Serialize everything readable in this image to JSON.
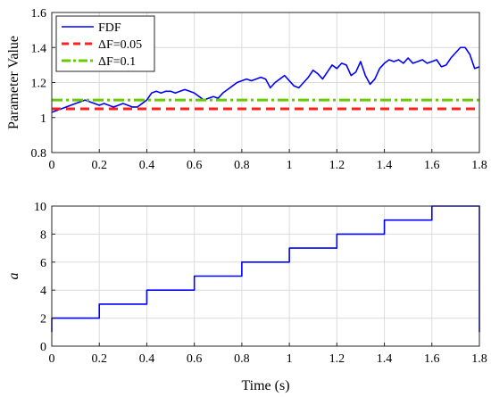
{
  "chart_data": [
    {
      "type": "line",
      "ylabel": "Parameter Value",
      "xlabel": "",
      "xlim": [
        0,
        1.8
      ],
      "ylim": [
        0.8,
        1.6
      ],
      "xticks": [
        0,
        0.2,
        0.4,
        0.6,
        0.8,
        1,
        1.2,
        1.4,
        1.6,
        1.8
      ],
      "yticks": [
        0.8,
        1,
        1.2,
        1.4,
        1.6
      ],
      "grid": true,
      "legend": "top-left",
      "series": [
        {
          "name": "FDF",
          "color": "#0000ff",
          "style": "solid",
          "x": [
            0,
            0.02,
            0.04,
            0.06,
            0.08,
            0.1,
            0.12,
            0.14,
            0.16,
            0.18,
            0.2,
            0.22,
            0.24,
            0.26,
            0.28,
            0.3,
            0.32,
            0.34,
            0.36,
            0.38,
            0.4,
            0.42,
            0.44,
            0.46,
            0.48,
            0.5,
            0.52,
            0.54,
            0.56,
            0.58,
            0.6,
            0.62,
            0.64,
            0.66,
            0.68,
            0.7,
            0.72,
            0.74,
            0.76,
            0.78,
            0.8,
            0.82,
            0.84,
            0.86,
            0.88,
            0.9,
            0.92,
            0.94,
            0.96,
            0.98,
            1,
            1.02,
            1.04,
            1.06,
            1.08,
            1.1,
            1.12,
            1.14,
            1.16,
            1.18,
            1.2,
            1.22,
            1.24,
            1.26,
            1.28,
            1.3,
            1.32,
            1.34,
            1.36,
            1.38,
            1.4,
            1.42,
            1.44,
            1.46,
            1.48,
            1.5,
            1.52,
            1.54,
            1.56,
            1.58,
            1.6,
            1.62,
            1.64,
            1.66,
            1.68,
            1.7,
            1.72,
            1.74,
            1.76,
            1.78,
            1.8
          ],
          "y": [
            1.03,
            1.04,
            1.05,
            1.06,
            1.07,
            1.08,
            1.09,
            1.1,
            1.09,
            1.08,
            1.07,
            1.08,
            1.07,
            1.06,
            1.07,
            1.08,
            1.07,
            1.06,
            1.06,
            1.08,
            1.1,
            1.14,
            1.15,
            1.14,
            1.15,
            1.15,
            1.14,
            1.15,
            1.16,
            1.15,
            1.14,
            1.12,
            1.1,
            1.11,
            1.12,
            1.11,
            1.14,
            1.16,
            1.18,
            1.2,
            1.21,
            1.22,
            1.21,
            1.22,
            1.23,
            1.22,
            1.17,
            1.2,
            1.22,
            1.24,
            1.21,
            1.18,
            1.17,
            1.2,
            1.23,
            1.27,
            1.25,
            1.22,
            1.26,
            1.3,
            1.28,
            1.31,
            1.3,
            1.24,
            1.26,
            1.32,
            1.24,
            1.19,
            1.22,
            1.28,
            1.31,
            1.33,
            1.32,
            1.33,
            1.31,
            1.34,
            1.31,
            1.32,
            1.33,
            1.31,
            1.32,
            1.33,
            1.29,
            1.3,
            1.34,
            1.37,
            1.4,
            1.4,
            1.36,
            1.28,
            1.29
          ]
        },
        {
          "name": "ΔF=0.05",
          "color": "#ff2020",
          "style": "dashed",
          "x": [
            0,
            1.8
          ],
          "y": [
            1.05,
            1.05
          ]
        },
        {
          "name": "ΔF=0.1",
          "color": "#66cc00",
          "style": "dashdot",
          "x": [
            0,
            1.8
          ],
          "y": [
            1.1,
            1.1
          ]
        }
      ]
    },
    {
      "type": "line",
      "xlabel": "Time (s)",
      "ylabel": "a",
      "xlim": [
        0,
        1.8
      ],
      "ylim": [
        0,
        10
      ],
      "xticks": [
        0,
        0.2,
        0.4,
        0.6,
        0.8,
        1,
        1.2,
        1.4,
        1.6,
        1.8
      ],
      "yticks": [
        0,
        2,
        4,
        6,
        8,
        10
      ],
      "grid": true,
      "series": [
        {
          "color": "#0000ff",
          "style": "solid",
          "x": [
            0,
            0,
            0.2,
            0.2,
            0.4,
            0.4,
            0.6,
            0.6,
            0.8,
            0.8,
            1,
            1,
            1.2,
            1.2,
            1.4,
            1.4,
            1.6,
            1.6,
            1.8,
            1.8
          ],
          "y": [
            1,
            2,
            2,
            3,
            3,
            4,
            4,
            5,
            5,
            6,
            6,
            7,
            7,
            8,
            8,
            9,
            9,
            10,
            10,
            1
          ]
        }
      ]
    }
  ]
}
